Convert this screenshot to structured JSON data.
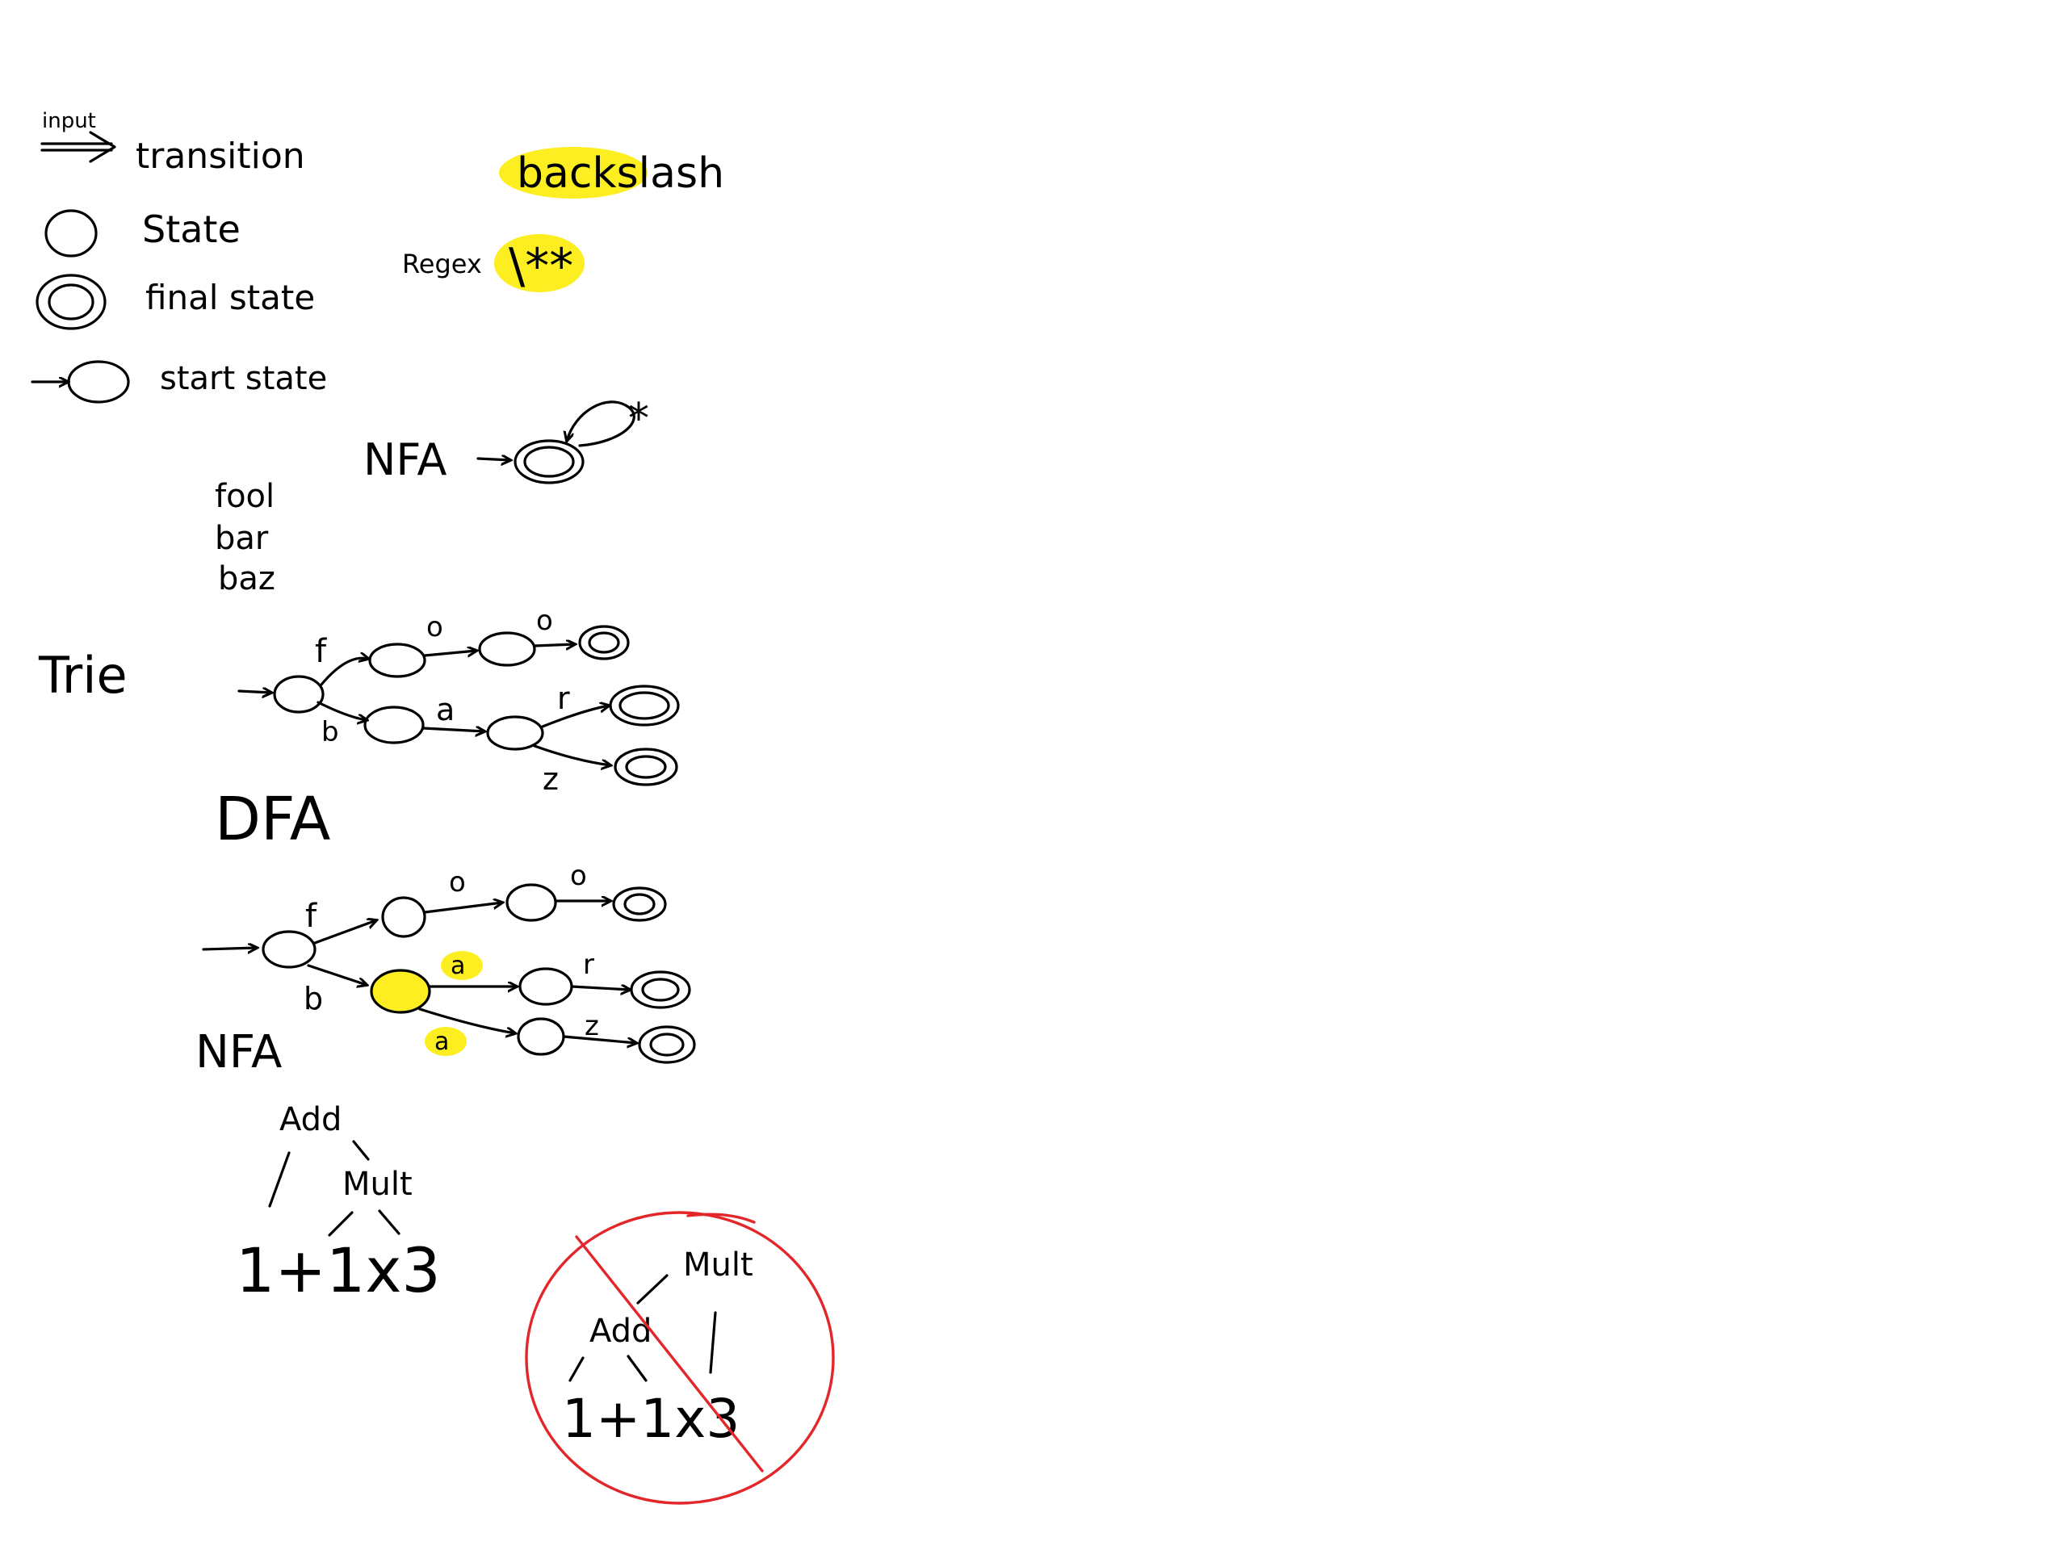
{
  "colors": {
    "ink": "#000000",
    "highlight": "#fcee21",
    "strike": "#e3262a",
    "background": "#ffffff"
  },
  "legend": {
    "input": "input",
    "transition": "transition",
    "state": "State",
    "final_state": "final state",
    "start_state": "start state"
  },
  "backslash_note": {
    "word": "backslash",
    "regex_label": "Regex",
    "regex": "\\**"
  },
  "nfa_star": {
    "label": "NFA",
    "loop": "*"
  },
  "words": [
    "fool",
    "bar",
    "baz"
  ],
  "trie": {
    "label": "Trie",
    "edges": {
      "f": "f",
      "o1": "o",
      "o2": "o",
      "b": "b",
      "a": "a",
      "r": "r",
      "z": "z"
    }
  },
  "dfa_label": "DFA",
  "nfa": {
    "label": "NFA",
    "edges": {
      "f": "f",
      "o1": "o",
      "o2": "o",
      "b": "b",
      "a1": "a",
      "r": "r",
      "a2": "a",
      "z": "z"
    }
  },
  "tree_correct": {
    "root": "Add",
    "child": "Mult",
    "expr": "1+1x3"
  },
  "tree_wrong": {
    "root": "Mult",
    "child": "Add",
    "expr": "1+1x3"
  }
}
